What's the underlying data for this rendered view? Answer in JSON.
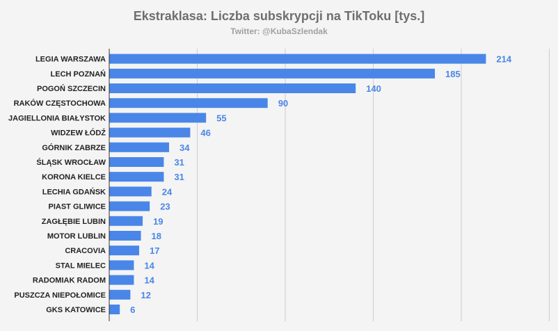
{
  "chart_data": {
    "type": "bar",
    "orientation": "horizontal",
    "title": "Ekstraklasa: Liczba subskrypcji na TikToku [tys.]",
    "subtitle": "Twitter: @KubaSzlendak",
    "categories": [
      "LEGIA WARSZAWA",
      "LECH POZNAŃ",
      "POGOŃ SZCZECIN",
      "RAKÓW CZĘSTOCHOWA",
      "JAGIELLONIA BIAŁYSTOK",
      "WIDZEW ŁÓDŹ",
      "GÓRNIK ZABRZE",
      "ŚLĄSK WROCŁAW",
      "KORONA KIELCE",
      "LECHIA GDAŃSK",
      "PIAST GLIWICE",
      "ZAGŁĘBIE LUBIN",
      "MOTOR LUBLIN",
      "CRACOVIA",
      "STAL MIELEC",
      "RADOMIAK RADOM",
      "PUSZCZA NIEPOŁOMICE",
      "GKS KATOWICE"
    ],
    "values": [
      214,
      185,
      140,
      90,
      55,
      46,
      34,
      31,
      31,
      24,
      23,
      19,
      18,
      17,
      14,
      14,
      12,
      6
    ],
    "xlim": [
      0,
      250
    ],
    "grid": true,
    "legend": "none",
    "colors": {
      "bar": "#4a86e8",
      "value_label": "#4a86e8",
      "gridline": "#cccccc",
      "title": "#6e6e6e",
      "subtitle": "#a0a0a0",
      "background": "#f4f4f4"
    }
  }
}
